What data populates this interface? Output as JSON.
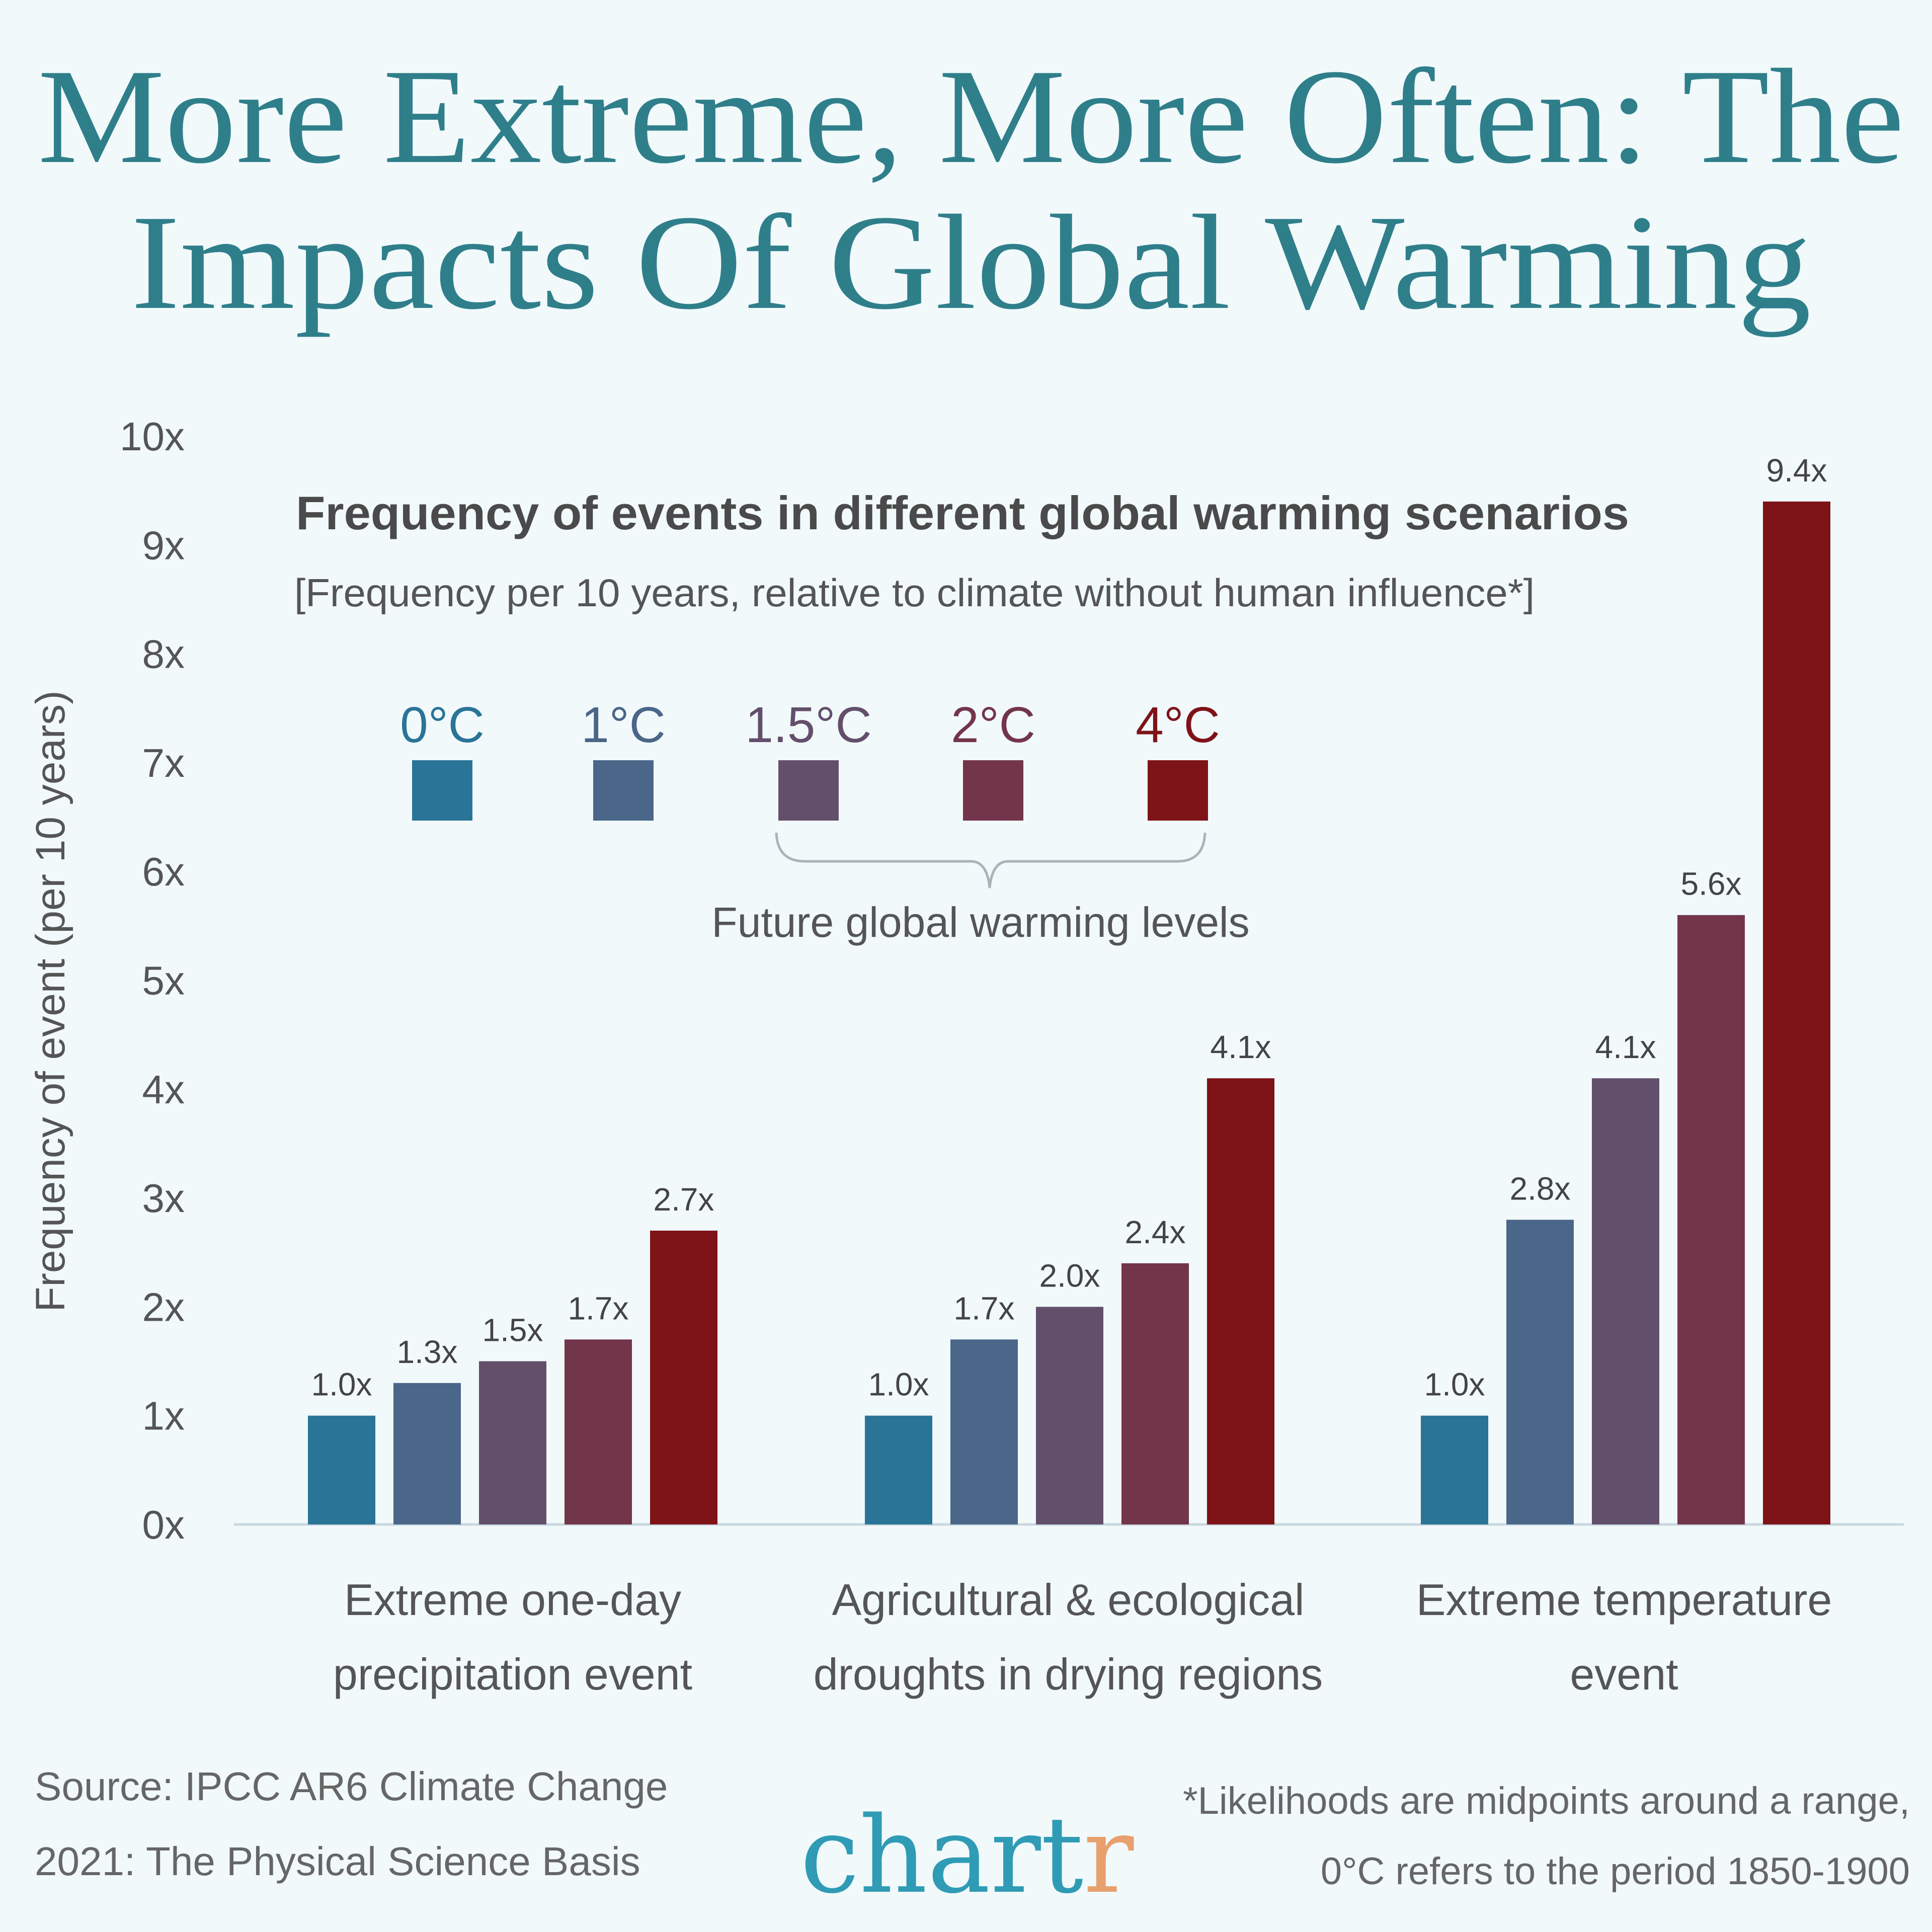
{
  "title": {
    "line1": "More Extreme, More Often: The",
    "line2": "Impacts Of Global Warming"
  },
  "chart_data": {
    "type": "bar",
    "title": "Frequency of events in different global warming scenarios",
    "subtitle": "[Frequency per 10 years, relative to climate without human influence*]",
    "ylabel": "Frequency of event (per 10 years)",
    "xlabel": "",
    "ylim": [
      0,
      10
    ],
    "yticks": [
      "0x",
      "1x",
      "2x",
      "3x",
      "4x",
      "5x",
      "6x",
      "7x",
      "8x",
      "9x",
      "10x"
    ],
    "grid": false,
    "legend_position": "top-center",
    "legend_bracket_label": "Future global warming levels",
    "categories": [
      [
        "Extreme one-day",
        "precipitation event"
      ],
      [
        "Agricultural & ecological",
        "droughts in drying regions"
      ],
      [
        "Extreme temperature",
        "event"
      ]
    ],
    "series": [
      {
        "name": "0°C",
        "color": "#2a7497",
        "values": [
          1.0,
          1.0,
          1.0
        ],
        "labels": [
          "1.0x",
          "1.0x",
          "1.0x"
        ]
      },
      {
        "name": "1°C",
        "color": "#4a6688",
        "values": [
          1.3,
          1.7,
          2.8
        ],
        "labels": [
          "1.3x",
          "1.7x",
          "2.8x"
        ]
      },
      {
        "name": "1.5°C",
        "color": "#634f6b",
        "values": [
          1.5,
          2.0,
          4.1
        ],
        "labels": [
          "1.5x",
          "2.0x",
          "4.1x"
        ]
      },
      {
        "name": "2°C",
        "color": "#733549",
        "values": [
          1.7,
          2.4,
          5.6
        ],
        "labels": [
          "1.7x",
          "2.4x",
          "5.6x"
        ]
      },
      {
        "name": "4°C",
        "color": "#7e1318",
        "values": [
          2.7,
          4.1,
          9.4
        ],
        "labels": [
          "2.7x",
          "4.1x",
          "9.4x"
        ]
      }
    ]
  },
  "footer": {
    "source_line1": "Source: IPCC AR6 Climate Change",
    "source_line2": "2021: The Physical Science Basis",
    "note_line1": "*Likelihoods are midpoints around a range,",
    "note_line2": "0°C refers to the period 1850-1900",
    "logo_main": "chart",
    "logo_accent": "r",
    "logo_colors": {
      "main": "#2f9bb5",
      "accent": "#e8a06e"
    }
  }
}
